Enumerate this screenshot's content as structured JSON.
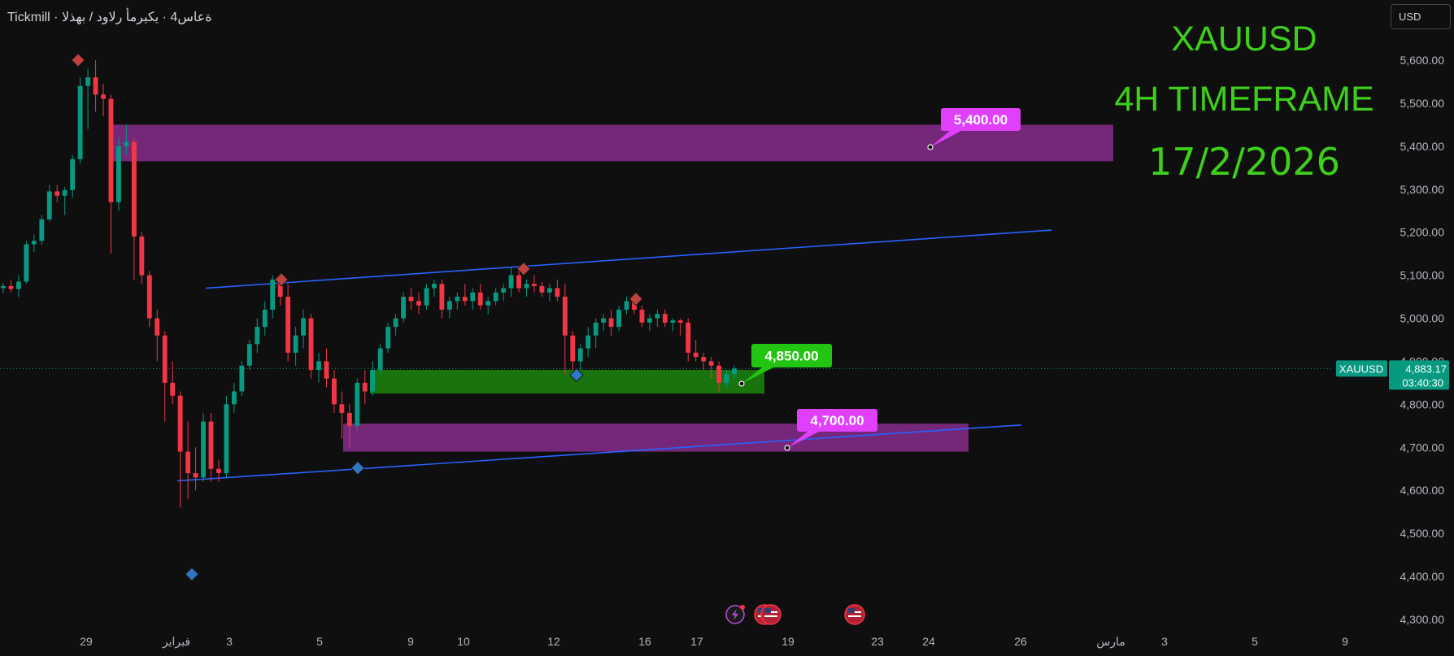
{
  "header": {
    "title_line": "Tickmill · ةعاس4 · يكيرمأ رلاود / بهذلا",
    "currency": "USD"
  },
  "overlay": {
    "symbol_title": "XAUUSD",
    "timeframe_title": "4H TIMEFRAME",
    "date_title": "17/2/2026"
  },
  "price_axis": {
    "ticks": [
      "5,600.00",
      "5,500.00",
      "5,400.00",
      "5,300.00",
      "5,200.00",
      "5,100.00",
      "5,000.00",
      "4,900.00",
      "4,800.00",
      "4,700.00",
      "4,600.00",
      "4,500.00",
      "4,400.00",
      "4,300.00"
    ],
    "last_price_label": "XAUUSD",
    "last_price": "4,883.17",
    "countdown": "03:40:30"
  },
  "time_axis": {
    "labels": [
      "29",
      "فبراير",
      "3",
      "5",
      "9",
      "10",
      "12",
      "16",
      "17",
      "19",
      "23",
      "24",
      "26",
      "مارس",
      "3",
      "5",
      "9"
    ]
  },
  "annotations": {
    "callouts": [
      {
        "label": "5,400.00",
        "color": "#e040fb"
      },
      {
        "label": "4,850.00",
        "color": "#22c511"
      },
      {
        "label": "4,700.00",
        "color": "#e040fb"
      }
    ]
  },
  "colors": {
    "up_candle": "#089981",
    "down_candle": "#f23645",
    "supply_zone": "#7b2a80",
    "demand_zone": "#1a7a0f",
    "trendline": "#2962ff",
    "title_green": "#3ecf1b"
  },
  "event_icons": [
    "lightning-event-icon",
    "us-flag-event-icon",
    "us-flag-event-icon",
    "us-flag-event-icon"
  ],
  "chart_data": {
    "type": "candlestick",
    "symbol": "XAUUSD",
    "timeframe": "4H",
    "ylim": [
      4270,
      5660
    ],
    "x_labels": [
      "29",
      "فبراير",
      "3",
      "5",
      "9",
      "10",
      "12",
      "16",
      "17",
      "19",
      "23",
      "24",
      "26",
      "مارس",
      "3",
      "5",
      "9"
    ],
    "y_ticks": [
      5600,
      5500,
      5400,
      5300,
      5200,
      5100,
      5000,
      4900,
      4800,
      4700,
      4600,
      4500,
      4400,
      4300
    ],
    "last_price": 4883.17,
    "zones": [
      {
        "kind": "supply",
        "low": 5365,
        "high": 5450
      },
      {
        "kind": "demand",
        "low": 4825,
        "high": 4880
      },
      {
        "kind": "support",
        "low": 4690,
        "high": 4755
      }
    ],
    "trendlines": [
      {
        "from": 5070,
        "to": 5205
      },
      {
        "from": 4622,
        "to": 4752
      }
    ],
    "candles": [
      {
        "o": 5070,
        "h": 5082,
        "l": 5058,
        "c": 5075
      },
      {
        "o": 5075,
        "h": 5090,
        "l": 5060,
        "c": 5068
      },
      {
        "o": 5068,
        "h": 5100,
        "l": 5050,
        "c": 5085
      },
      {
        "o": 5085,
        "h": 5180,
        "l": 5080,
        "c": 5172
      },
      {
        "o": 5172,
        "h": 5195,
        "l": 5155,
        "c": 5180
      },
      {
        "o": 5180,
        "h": 5240,
        "l": 5170,
        "c": 5230
      },
      {
        "o": 5230,
        "h": 5310,
        "l": 5225,
        "c": 5295
      },
      {
        "o": 5295,
        "h": 5310,
        "l": 5270,
        "c": 5285
      },
      {
        "o": 5285,
        "h": 5305,
        "l": 5240,
        "c": 5298
      },
      {
        "o": 5298,
        "h": 5380,
        "l": 5280,
        "c": 5370
      },
      {
        "o": 5370,
        "h": 5560,
        "l": 5360,
        "c": 5540
      },
      {
        "o": 5540,
        "h": 5580,
        "l": 5440,
        "c": 5560
      },
      {
        "o": 5560,
        "h": 5600,
        "l": 5480,
        "c": 5520
      },
      {
        "o": 5520,
        "h": 5545,
        "l": 5470,
        "c": 5510
      },
      {
        "o": 5510,
        "h": 5520,
        "l": 5150,
        "c": 5270
      },
      {
        "o": 5270,
        "h": 5420,
        "l": 5250,
        "c": 5400
      },
      {
        "o": 5400,
        "h": 5450,
        "l": 5380,
        "c": 5410
      },
      {
        "o": 5410,
        "h": 5420,
        "l": 5090,
        "c": 5190
      },
      {
        "o": 5190,
        "h": 5200,
        "l": 5080,
        "c": 5100
      },
      {
        "o": 5100,
        "h": 5110,
        "l": 4980,
        "c": 5000
      },
      {
        "o": 5000,
        "h": 5020,
        "l": 4900,
        "c": 4960
      },
      {
        "o": 4960,
        "h": 4970,
        "l": 4760,
        "c": 4850
      },
      {
        "o": 4850,
        "h": 4900,
        "l": 4800,
        "c": 4820
      },
      {
        "o": 4820,
        "h": 4830,
        "l": 4560,
        "c": 4690
      },
      {
        "o": 4690,
        "h": 4760,
        "l": 4580,
        "c": 4640
      },
      {
        "o": 4640,
        "h": 4700,
        "l": 4600,
        "c": 4630
      },
      {
        "o": 4630,
        "h": 4780,
        "l": 4620,
        "c": 4760
      },
      {
        "o": 4760,
        "h": 4780,
        "l": 4620,
        "c": 4650
      },
      {
        "o": 4650,
        "h": 4670,
        "l": 4620,
        "c": 4640
      },
      {
        "o": 4640,
        "h": 4820,
        "l": 4630,
        "c": 4800
      },
      {
        "o": 4800,
        "h": 4850,
        "l": 4780,
        "c": 4830
      },
      {
        "o": 4830,
        "h": 4900,
        "l": 4820,
        "c": 4890
      },
      {
        "o": 4890,
        "h": 4950,
        "l": 4880,
        "c": 4940
      },
      {
        "o": 4940,
        "h": 5000,
        "l": 4920,
        "c": 4980
      },
      {
        "o": 4980,
        "h": 5040,
        "l": 4960,
        "c": 5020
      },
      {
        "o": 5020,
        "h": 5100,
        "l": 5000,
        "c": 5090
      },
      {
        "o": 5090,
        "h": 5100,
        "l": 5030,
        "c": 5050
      },
      {
        "o": 5050,
        "h": 5080,
        "l": 4900,
        "c": 4920
      },
      {
        "o": 4920,
        "h": 4980,
        "l": 4890,
        "c": 4960
      },
      {
        "o": 4960,
        "h": 5020,
        "l": 4930,
        "c": 5000
      },
      {
        "o": 5000,
        "h": 5010,
        "l": 4860,
        "c": 4880
      },
      {
        "o": 4880,
        "h": 4920,
        "l": 4850,
        "c": 4900
      },
      {
        "o": 4900,
        "h": 4930,
        "l": 4840,
        "c": 4860
      },
      {
        "o": 4860,
        "h": 4880,
        "l": 4780,
        "c": 4800
      },
      {
        "o": 4800,
        "h": 4830,
        "l": 4720,
        "c": 4780
      },
      {
        "o": 4780,
        "h": 4800,
        "l": 4700,
        "c": 4750
      },
      {
        "o": 4750,
        "h": 4860,
        "l": 4740,
        "c": 4850
      },
      {
        "o": 4850,
        "h": 4880,
        "l": 4800,
        "c": 4830
      },
      {
        "o": 4830,
        "h": 4900,
        "l": 4820,
        "c": 4880
      },
      {
        "o": 4880,
        "h": 4940,
        "l": 4870,
        "c": 4930
      },
      {
        "o": 4930,
        "h": 4990,
        "l": 4920,
        "c": 4980
      },
      {
        "o": 4980,
        "h": 5010,
        "l": 4960,
        "c": 5000
      },
      {
        "o": 5000,
        "h": 5060,
        "l": 4990,
        "c": 5050
      },
      {
        "o": 5050,
        "h": 5070,
        "l": 5020,
        "c": 5040
      },
      {
        "o": 5040,
        "h": 5060,
        "l": 5010,
        "c": 5030
      },
      {
        "o": 5030,
        "h": 5080,
        "l": 5020,
        "c": 5070
      },
      {
        "o": 5070,
        "h": 5090,
        "l": 5050,
        "c": 5080
      },
      {
        "o": 5080,
        "h": 5090,
        "l": 5000,
        "c": 5020
      },
      {
        "o": 5020,
        "h": 5050,
        "l": 5000,
        "c": 5040
      },
      {
        "o": 5040,
        "h": 5060,
        "l": 5020,
        "c": 5050
      },
      {
        "o": 5050,
        "h": 5080,
        "l": 5030,
        "c": 5040
      },
      {
        "o": 5040,
        "h": 5070,
        "l": 5020,
        "c": 5060
      },
      {
        "o": 5060,
        "h": 5080,
        "l": 5020,
        "c": 5030
      },
      {
        "o": 5030,
        "h": 5050,
        "l": 5010,
        "c": 5040
      },
      {
        "o": 5040,
        "h": 5070,
        "l": 5030,
        "c": 5060
      },
      {
        "o": 5060,
        "h": 5080,
        "l": 5040,
        "c": 5070
      },
      {
        "o": 5070,
        "h": 5120,
        "l": 5050,
        "c": 5100
      },
      {
        "o": 5100,
        "h": 5110,
        "l": 5060,
        "c": 5070
      },
      {
        "o": 5070,
        "h": 5090,
        "l": 5050,
        "c": 5080
      },
      {
        "o": 5080,
        "h": 5100,
        "l": 5060,
        "c": 5075
      },
      {
        "o": 5075,
        "h": 5085,
        "l": 5050,
        "c": 5060
      },
      {
        "o": 5060,
        "h": 5080,
        "l": 5040,
        "c": 5070
      },
      {
        "o": 5070,
        "h": 5090,
        "l": 5040,
        "c": 5050
      },
      {
        "o": 5050,
        "h": 5080,
        "l": 4870,
        "c": 4960
      },
      {
        "o": 4960,
        "h": 4970,
        "l": 4880,
        "c": 4900
      },
      {
        "o": 4900,
        "h": 4940,
        "l": 4880,
        "c": 4930
      },
      {
        "o": 4930,
        "h": 4980,
        "l": 4910,
        "c": 4960
      },
      {
        "o": 4960,
        "h": 5000,
        "l": 4930,
        "c": 4990
      },
      {
        "o": 4990,
        "h": 5010,
        "l": 4970,
        "c": 5000
      },
      {
        "o": 5000,
        "h": 5020,
        "l": 4960,
        "c": 4980
      },
      {
        "o": 4980,
        "h": 5030,
        "l": 4970,
        "c": 5020
      },
      {
        "o": 5020,
        "h": 5050,
        "l": 5010,
        "c": 5040
      },
      {
        "o": 5040,
        "h": 5050,
        "l": 5010,
        "c": 5020
      },
      {
        "o": 5020,
        "h": 5030,
        "l": 4980,
        "c": 4990
      },
      {
        "o": 4990,
        "h": 5010,
        "l": 4970,
        "c": 5000
      },
      {
        "o": 5000,
        "h": 5020,
        "l": 4980,
        "c": 5010
      },
      {
        "o": 5010,
        "h": 5020,
        "l": 4980,
        "c": 4990
      },
      {
        "o": 4990,
        "h": 5000,
        "l": 4970,
        "c": 4995
      },
      {
        "o": 4995,
        "h": 5000,
        "l": 4960,
        "c": 4990
      },
      {
        "o": 4990,
        "h": 5000,
        "l": 4900,
        "c": 4920
      },
      {
        "o": 4920,
        "h": 4950,
        "l": 4900,
        "c": 4910
      },
      {
        "o": 4910,
        "h": 4920,
        "l": 4880,
        "c": 4900
      },
      {
        "o": 4900,
        "h": 4910,
        "l": 4860,
        "c": 4890
      },
      {
        "o": 4890,
        "h": 4900,
        "l": 4830,
        "c": 4850
      },
      {
        "o": 4850,
        "h": 4880,
        "l": 4840,
        "c": 4870
      },
      {
        "o": 4870,
        "h": 4890,
        "l": 4860,
        "c": 4883
      }
    ]
  }
}
